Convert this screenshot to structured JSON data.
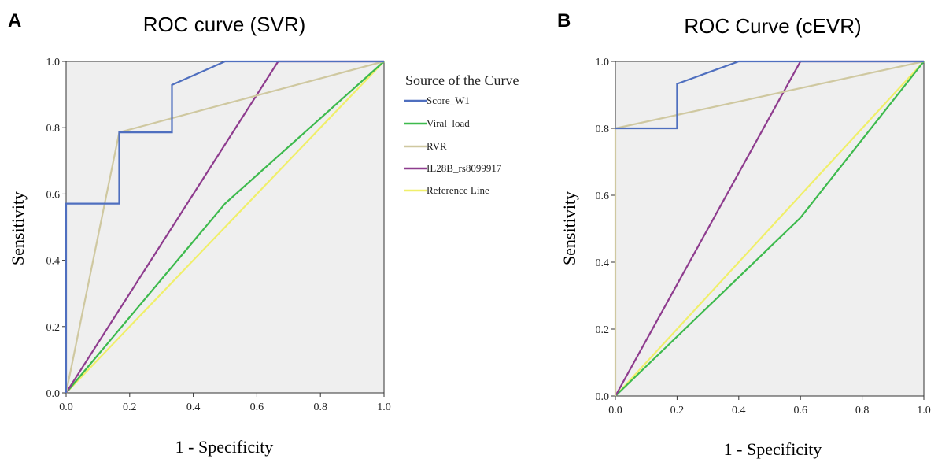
{
  "chart_data": [
    {
      "panel_label": "A",
      "type": "line",
      "title": "ROC curve (SVR)",
      "xlabel": "1 - Specificity",
      "ylabel": "Sensitivity",
      "xlim": [
        0,
        1
      ],
      "ylim": [
        0,
        1
      ],
      "xticks": [
        "0.0",
        "0.2",
        "0.4",
        "0.6",
        "0.8",
        "1.0"
      ],
      "yticks": [
        "0.0",
        "0.2",
        "0.4",
        "0.6",
        "0.8",
        "1.0"
      ],
      "grid": false,
      "legend_title": "Source of the Curve",
      "legend_position": "right",
      "series": [
        {
          "name": "Score_W1",
          "color": "#4f6fbf",
          "points": [
            [
              0,
              0
            ],
            [
              0,
              0.571
            ],
            [
              0.167,
              0.571
            ],
            [
              0.167,
              0.786
            ],
            [
              0.333,
              0.786
            ],
            [
              0.333,
              0.929
            ],
            [
              0.5,
              1.0
            ],
            [
              1.0,
              1.0
            ]
          ]
        },
        {
          "name": "Viral_load",
          "color": "#3dba4d",
          "points": [
            [
              0,
              0
            ],
            [
              0.5,
              0.571
            ],
            [
              1.0,
              1.0
            ]
          ]
        },
        {
          "name": "RVR",
          "color": "#cfc8a0",
          "points": [
            [
              0,
              0
            ],
            [
              0.167,
              0.786
            ],
            [
              1.0,
              1.0
            ]
          ]
        },
        {
          "name": "IL28B_rs8099917",
          "color": "#8e3c8e",
          "points": [
            [
              0,
              0
            ],
            [
              0.667,
              1.0
            ],
            [
              1.0,
              1.0
            ]
          ]
        },
        {
          "name": "Reference Line",
          "color": "#f0ef6a",
          "points": [
            [
              0,
              0
            ],
            [
              1.0,
              1.0
            ]
          ]
        }
      ]
    },
    {
      "panel_label": "B",
      "type": "line",
      "title": "ROC Curve (cEVR)",
      "xlabel": "1 - Specificity",
      "ylabel": "Sensitivity",
      "xlim": [
        0,
        1
      ],
      "ylim": [
        0,
        1
      ],
      "xticks": [
        "0.0",
        "0.2",
        "0.4",
        "0.6",
        "0.8",
        "1.0"
      ],
      "yticks": [
        "0.0",
        "0.2",
        "0.4",
        "0.6",
        "0.8",
        "1.0"
      ],
      "grid": false,
      "series": [
        {
          "name": "Score_W1",
          "color": "#4f6fbf",
          "points": [
            [
              0,
              0.8
            ],
            [
              0.2,
              0.8
            ],
            [
              0.2,
              0.933
            ],
            [
              0.4,
              1.0
            ],
            [
              1.0,
              1.0
            ]
          ]
        },
        {
          "name": "Viral_load",
          "color": "#3dba4d",
          "points": [
            [
              0,
              0
            ],
            [
              0.6,
              0.533
            ],
            [
              1.0,
              1.0
            ]
          ]
        },
        {
          "name": "RVR",
          "color": "#cfc8a0",
          "points": [
            [
              0,
              0
            ],
            [
              0,
              0.8
            ],
            [
              1.0,
              1.0
            ]
          ]
        },
        {
          "name": "IL28B_rs8099917",
          "color": "#8e3c8e",
          "points": [
            [
              0,
              0
            ],
            [
              0.6,
              1.0
            ],
            [
              1.0,
              1.0
            ]
          ]
        },
        {
          "name": "Reference Line",
          "color": "#f0ef6a",
          "points": [
            [
              0,
              0
            ],
            [
              1.0,
              1.0
            ]
          ]
        }
      ]
    }
  ]
}
